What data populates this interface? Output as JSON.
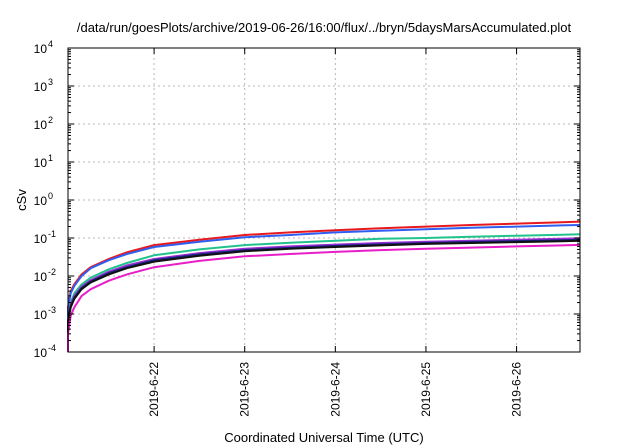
{
  "chart_data": {
    "type": "line",
    "title": "/data/run/goesPlots/archive/2019-06-26/16:00/flux/../bryn/5daysMarsAccumulated.plot",
    "xlabel": "Coordinated Universal Time (UTC)",
    "ylabel": "cSv",
    "y_scale": "log",
    "ylim": [
      0.0001,
      10000
    ],
    "xlim": [
      21.05,
      26.7
    ],
    "grid": true,
    "legend": "none",
    "x_ticks": [
      {
        "value": 22,
        "label": "2019-6-22"
      },
      {
        "value": 23,
        "label": "2019-6-23"
      },
      {
        "value": 24,
        "label": "2019-6-24"
      },
      {
        "value": 25,
        "label": "2019-6-25"
      },
      {
        "value": 26,
        "label": "2019-6-26"
      }
    ],
    "y_ticks": [
      {
        "value": 0.0001,
        "base": "10",
        "exp": "-4"
      },
      {
        "value": 0.001,
        "base": "10",
        "exp": "-3"
      },
      {
        "value": 0.01,
        "base": "10",
        "exp": "-2"
      },
      {
        "value": 0.1,
        "base": "10",
        "exp": "-1"
      },
      {
        "value": 1,
        "base": "10",
        "exp": "0"
      },
      {
        "value": 10,
        "base": "10",
        "exp": "1"
      },
      {
        "value": 100,
        "base": "10",
        "exp": "2"
      },
      {
        "value": 1000,
        "base": "10",
        "exp": "3"
      },
      {
        "value": 10000,
        "base": "10",
        "exp": "4"
      }
    ],
    "x": [
      21.05,
      21.08,
      21.12,
      21.2,
      21.3,
      21.5,
      21.7,
      22.0,
      22.5,
      23.0,
      23.5,
      24.0,
      24.5,
      25.0,
      25.5,
      26.0,
      26.5,
      26.7
    ],
    "series": [
      {
        "color": "#e8191c",
        "values": [
          0.0015,
          0.004,
          0.006,
          0.011,
          0.017,
          0.028,
          0.042,
          0.065,
          0.09,
          0.12,
          0.14,
          0.16,
          0.18,
          0.2,
          0.22,
          0.24,
          0.26,
          0.27
        ]
      },
      {
        "color": "#2f5ef0",
        "values": [
          0.0013,
          0.0035,
          0.0055,
          0.01,
          0.016,
          0.026,
          0.038,
          0.058,
          0.08,
          0.105,
          0.12,
          0.14,
          0.155,
          0.17,
          0.185,
          0.2,
          0.215,
          0.22
        ]
      },
      {
        "color": "#22c28e",
        "values": [
          0.0008,
          0.002,
          0.0035,
          0.006,
          0.009,
          0.015,
          0.022,
          0.035,
          0.05,
          0.065,
          0.075,
          0.085,
          0.095,
          0.1,
          0.108,
          0.115,
          0.122,
          0.125
        ]
      },
      {
        "color": "#9a2fd6",
        "values": [
          0.0007,
          0.0018,
          0.003,
          0.0052,
          0.0078,
          0.013,
          0.019,
          0.028,
          0.04,
          0.052,
          0.06,
          0.067,
          0.074,
          0.08,
          0.085,
          0.09,
          0.095,
          0.098
        ]
      },
      {
        "color": "#1a237e",
        "values": [
          0.00065,
          0.0016,
          0.0027,
          0.0048,
          0.0072,
          0.012,
          0.017,
          0.026,
          0.037,
          0.048,
          0.055,
          0.062,
          0.068,
          0.074,
          0.079,
          0.083,
          0.087,
          0.09
        ]
      },
      {
        "color": "#111111",
        "values": [
          0.0006,
          0.0015,
          0.0025,
          0.0045,
          0.0068,
          0.011,
          0.016,
          0.024,
          0.034,
          0.045,
          0.052,
          0.058,
          0.064,
          0.07,
          0.074,
          0.078,
          0.082,
          0.085
        ]
      },
      {
        "color": "#e81ec8",
        "values": [
          0.0003,
          0.0009,
          0.0015,
          0.003,
          0.0045,
          0.0075,
          0.011,
          0.017,
          0.025,
          0.033,
          0.038,
          0.043,
          0.048,
          0.052,
          0.056,
          0.06,
          0.064,
          0.066
        ]
      }
    ]
  }
}
